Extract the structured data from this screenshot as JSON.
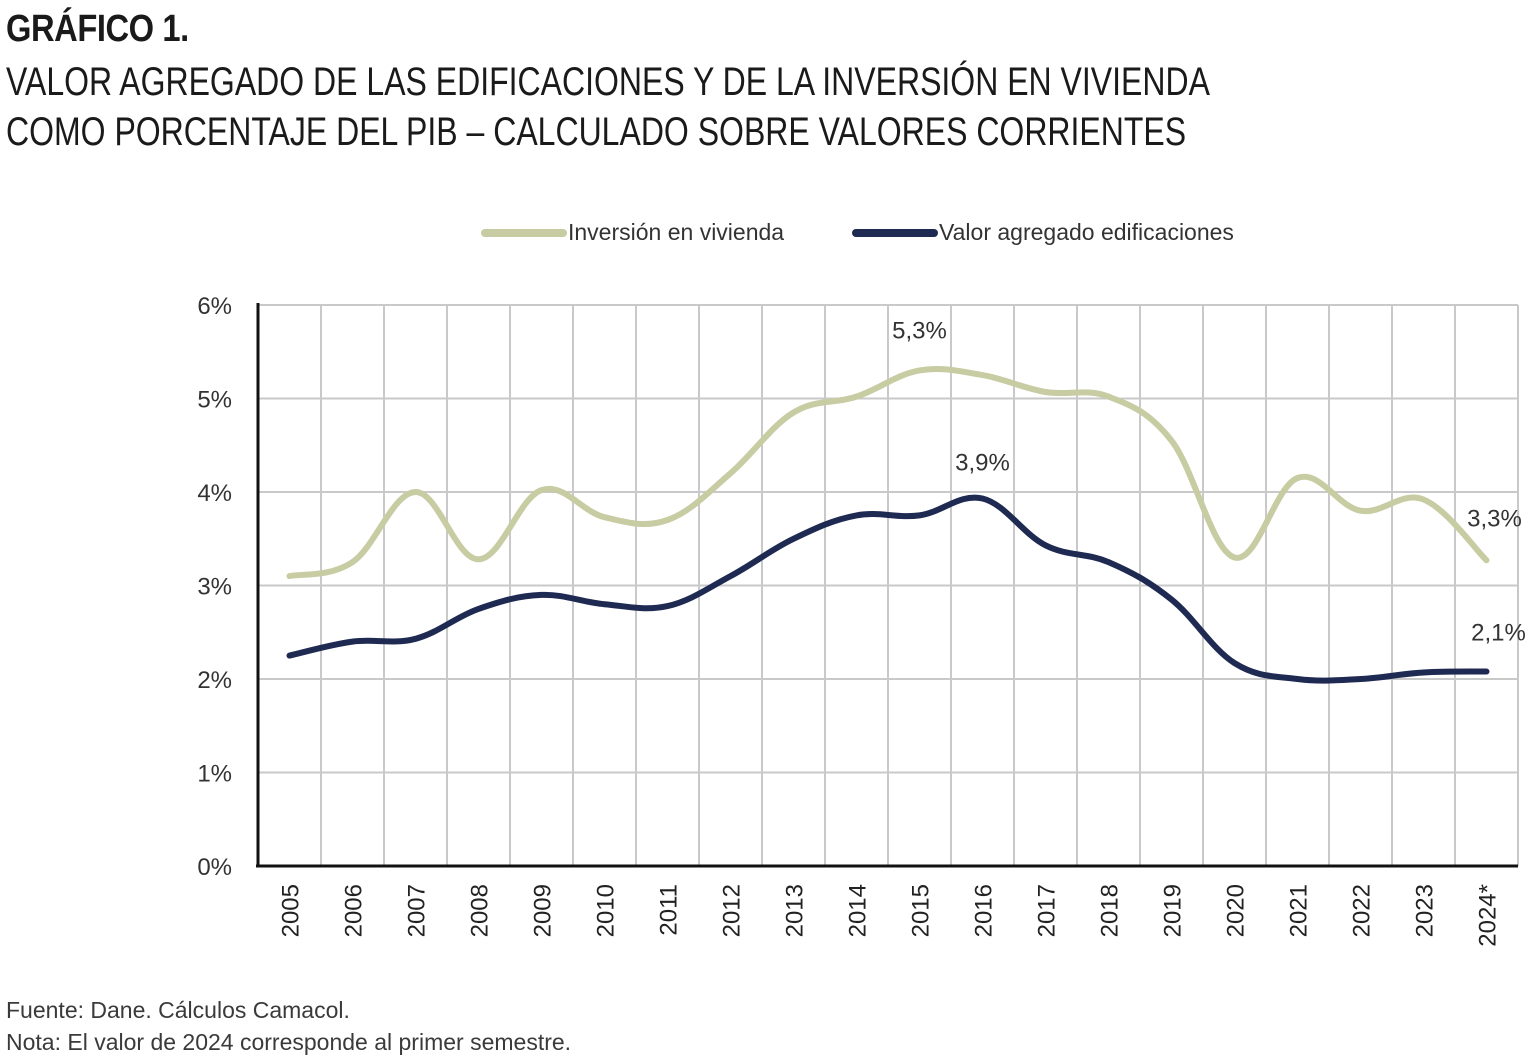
{
  "header": {
    "figure_label": "GRÁFICO 1.",
    "title_line1": "VALOR AGREGADO DE LAS EDIFICACIONES Y DE LA INVERSIÓN EN VIVIENDA",
    "title_line2": "COMO PORCENTAJE DEL PIB – CALCULADO SOBRE VALORES CORRIENTES"
  },
  "footer": {
    "source": "Fuente: Dane. Cálculos Camacol.",
    "note": "Nota: El valor de 2024 corresponde al primer semestre."
  },
  "chart_data": {
    "type": "line",
    "title": "VALOR AGREGADO DE LAS EDIFICACIONES Y DE LA INVERSIÓN EN VIVIENDA COMO PORCENTAJE DEL PIB – CALCULADO SOBRE VALORES CORRIENTES",
    "xlabel": "",
    "ylabel": "",
    "categories": [
      "2005",
      "2006",
      "2007",
      "2008",
      "2009",
      "2010",
      "2011",
      "2012",
      "2013",
      "2014",
      "2015",
      "2016",
      "2017",
      "2018",
      "2019",
      "2020",
      "2021",
      "2022",
      "2023",
      "2024*"
    ],
    "ylim": [
      0,
      6
    ],
    "yticks": [
      0,
      1,
      2,
      3,
      4,
      5,
      6
    ],
    "ytick_labels": [
      "0%",
      "1%",
      "2%",
      "3%",
      "4%",
      "5%",
      "6%"
    ],
    "grid": true,
    "legend_position": "top-center",
    "series": [
      {
        "name": "Inversión en vivienda",
        "color": "#c8cca2",
        "values": [
          3.1,
          3.25,
          4.0,
          3.28,
          4.02,
          3.73,
          3.7,
          4.2,
          4.85,
          5.02,
          5.3,
          5.25,
          5.07,
          5.02,
          4.55,
          3.3,
          4.15,
          3.8,
          3.92,
          3.27
        ]
      },
      {
        "name": "Valor agregado edificaciones",
        "color": "#1f2a52",
        "values": [
          2.25,
          2.4,
          2.43,
          2.75,
          2.9,
          2.8,
          2.78,
          3.1,
          3.5,
          3.75,
          3.75,
          3.93,
          3.43,
          3.25,
          2.85,
          2.17,
          2.0,
          2.0,
          2.07,
          2.08
        ]
      }
    ],
    "annotations": [
      {
        "series": 0,
        "index": 10,
        "text": "5,3%"
      },
      {
        "series": 1,
        "index": 11,
        "text": "3,9%"
      },
      {
        "series": 0,
        "index": 19,
        "text": "3,3%"
      },
      {
        "series": 1,
        "index": 19,
        "text": "2,1%"
      }
    ]
  }
}
